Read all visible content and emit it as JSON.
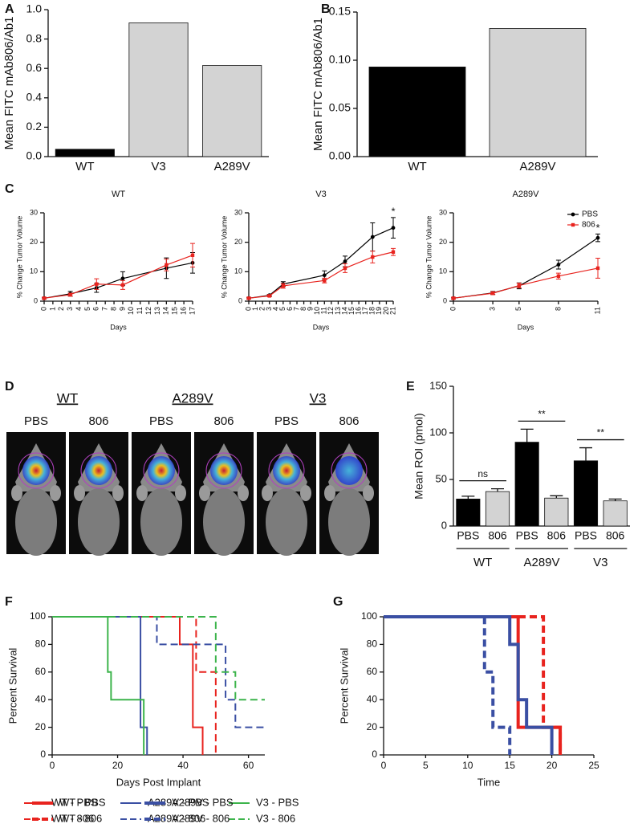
{
  "chart_data": [
    {
      "type": "bar",
      "label": "A",
      "ylabel": "Mean FITC mAb806/Ab1",
      "categories": [
        "WT",
        "V3",
        "A289V"
      ],
      "values": [
        0.05,
        0.91,
        0.62
      ],
      "colors": [
        "#000000",
        "#d3d3d3",
        "#d3d3d3"
      ],
      "ylim": [
        0,
        1
      ],
      "yticks": [
        {
          "value": 0,
          "label": "0.0"
        },
        0.2,
        0.4,
        0.6,
        0.8,
        {
          "value": 1,
          "label": "1.0"
        }
      ]
    },
    {
      "type": "bar",
      "label": "B",
      "ylabel": "Mean FITC mAb806/Ab1",
      "categories": [
        "WT",
        "A289V"
      ],
      "values": [
        0.093,
        0.133
      ],
      "colors": [
        "#000000",
        "#d3d3d3"
      ],
      "ylim": [
        0,
        0.15
      ],
      "yticks": [
        {
          "value": 0,
          "label": "0.00"
        },
        {
          "value": 0.05,
          "label": "0.05"
        },
        {
          "value": 0.1,
          "label": "0.10"
        },
        {
          "value": 0.15,
          "label": "0.15"
        }
      ]
    },
    {
      "type": "line",
      "label": "C",
      "title": "WT",
      "ylabel": "% Change Tumor Volume",
      "xlabel": "Days",
      "x": [
        0,
        3,
        6,
        9,
        14,
        17
      ],
      "xlim": [
        0,
        17
      ],
      "xticks": [
        0,
        1,
        2,
        3,
        4,
        5,
        6,
        7,
        8,
        9,
        10,
        11,
        12,
        13,
        14,
        15,
        16,
        17
      ],
      "ylim": [
        0,
        30
      ],
      "yticks": [
        0,
        10,
        20,
        30
      ],
      "series": [
        {
          "color": "#000000",
          "values": [
            1,
            2.5,
            4.5,
            7.7,
            11.2,
            13
          ],
          "errors": [
            0.3,
            0.8,
            1.5,
            2.3,
            3.5,
            3.5
          ]
        },
        {
          "color": "#e8231e",
          "values": [
            1,
            2.2,
            5.8,
            5.5,
            12.3,
            15.6
          ],
          "errors": [
            0.3,
            0.5,
            1.8,
            1.5,
            2,
            4
          ]
        }
      ]
    },
    {
      "type": "line",
      "title": "V3",
      "ylabel": "% Change Tumor Volume",
      "xlabel": "Days",
      "x": [
        0,
        3,
        5,
        11,
        14,
        18,
        21
      ],
      "xlim": [
        0,
        21
      ],
      "xticks": [
        0,
        1,
        2,
        3,
        4,
        5,
        6,
        7,
        8,
        9,
        10,
        11,
        12,
        13,
        14,
        15,
        16,
        17,
        18,
        19,
        20,
        21
      ],
      "ylim": [
        0,
        30
      ],
      "yticks": [
        0,
        10,
        20,
        30
      ],
      "annotation": "*",
      "series": [
        {
          "color": "#000000",
          "values": [
            1,
            2,
            5.8,
            8.8,
            13.5,
            21.8,
            24.9
          ],
          "errors": [
            0.3,
            0.3,
            0.8,
            1.5,
            1.8,
            4.8,
            3.5
          ]
        },
        {
          "color": "#e8231e",
          "values": [
            1,
            1.8,
            5.2,
            7,
            11.2,
            15,
            16.7
          ],
          "errors": [
            0.3,
            0.3,
            0.8,
            0.8,
            1.5,
            2,
            1.2
          ]
        }
      ]
    },
    {
      "type": "line",
      "title": "A289V",
      "ylabel": "% Change Tumor Volume",
      "xlabel": "Days",
      "x": [
        0,
        3,
        5,
        8,
        11
      ],
      "xlim": [
        0,
        11
      ],
      "xticks": [
        0,
        3,
        5,
        8,
        11
      ],
      "ylim": [
        0,
        30
      ],
      "yticks": [
        0,
        10,
        20,
        30
      ],
      "annotation": "*",
      "series": [
        {
          "name": "PBS",
          "color": "#000000",
          "values": [
            1,
            2.8,
            5.2,
            12.4,
            21.5
          ],
          "errors": [
            0.3,
            0.5,
            1,
            1.5,
            1.3
          ]
        },
        {
          "name": "806",
          "color": "#e8231e",
          "values": [
            1,
            2.7,
            5.3,
            8.5,
            11.2
          ],
          "errors": [
            0.3,
            0.5,
            0.8,
            1,
            3.4
          ]
        }
      ]
    },
    {
      "type": "bar",
      "label": "E",
      "ylabel": "Mean ROI (pmol)",
      "categories": [
        "PBS",
        "806",
        "PBS",
        "806",
        "PBS",
        "806"
      ],
      "values": [
        29,
        37,
        90,
        30,
        70,
        27
      ],
      "errors": [
        3,
        3,
        14,
        2.5,
        14,
        2
      ],
      "colors": [
        "#000000",
        "#d3d3d3",
        "#000000",
        "#d3d3d3",
        "#000000",
        "#d3d3d3"
      ],
      "group_labels": [
        "WT",
        "A289V",
        "V3"
      ],
      "annotations": [
        "ns",
        "**",
        "**"
      ],
      "ylim": [
        0,
        150
      ],
      "yticks": [
        0,
        50,
        100,
        150
      ]
    },
    {
      "type": "survival",
      "label": "F",
      "ylabel": "Percent Survival",
      "xlabel": "Days Post Implant",
      "xlim": [
        0,
        65
      ],
      "xticks": [
        0,
        20,
        40,
        60
      ],
      "ylim": [
        0,
        100
      ],
      "yticks": [
        0,
        20,
        40,
        60,
        80,
        100
      ],
      "series": [
        {
          "name": "WT - PBS",
          "color": "#e8231e",
          "dashed": false,
          "x": [
            0,
            39,
            43,
            46
          ],
          "values": [
            100,
            80,
            20,
            0
          ]
        },
        {
          "name": "WT - 806",
          "color": "#e8231e",
          "dashed": true,
          "x": [
            0,
            44,
            50
          ],
          "values": [
            100,
            60,
            0
          ]
        },
        {
          "name": "A289V - PBS",
          "color": "#3a4fa3",
          "dashed": false,
          "x": [
            0,
            27,
            29
          ],
          "values": [
            100,
            20,
            0
          ]
        },
        {
          "name": "A289V - 806",
          "color": "#3a4fa3",
          "dashed": true,
          "x": [
            0,
            32,
            53,
            56,
            65
          ],
          "values": [
            100,
            80,
            40,
            20,
            20
          ]
        },
        {
          "name": "V3 - PBS",
          "color": "#3cb44b",
          "dashed": false,
          "x": [
            0,
            17,
            18,
            28
          ],
          "values": [
            100,
            60,
            40,
            0
          ]
        },
        {
          "name": "V3 - 806",
          "color": "#3cb44b",
          "dashed": true,
          "x": [
            0,
            50,
            56,
            65
          ],
          "values": [
            100,
            60,
            40,
            40
          ]
        }
      ]
    },
    {
      "type": "survival",
      "label": "G",
      "ylabel": "Percent Survival",
      "xlabel": "Time",
      "xlim": [
        0,
        25
      ],
      "xticks": [
        0,
        5,
        10,
        15,
        20,
        25
      ],
      "ylim": [
        0,
        100
      ],
      "yticks": [
        0,
        20,
        40,
        60,
        80,
        100
      ],
      "series": [
        {
          "name": "WT - PBS",
          "color": "#e8231e",
          "dashed": false,
          "x": [
            0,
            16,
            21
          ],
          "values": [
            100,
            20,
            0
          ]
        },
        {
          "name": "WT - 806",
          "color": "#e8231e",
          "dashed": true,
          "x": [
            0,
            19,
            21
          ],
          "values": [
            100,
            20,
            0
          ]
        },
        {
          "name": "A289V - PBS",
          "color": "#3a4fa3",
          "dashed": false,
          "x": [
            0,
            15,
            16,
            17,
            20
          ],
          "values": [
            100,
            80,
            40,
            20,
            0
          ]
        },
        {
          "name": "A289V - 806",
          "color": "#3a4fa3",
          "dashed": true,
          "x": [
            0,
            12,
            13,
            15
          ],
          "values": [
            100,
            60,
            20,
            0
          ]
        }
      ]
    }
  ],
  "panel_d": {
    "label": "D",
    "groups": [
      "WT",
      "A289V",
      "V3"
    ],
    "treatments": [
      "PBS",
      "806",
      "PBS",
      "806",
      "PBS",
      "806"
    ]
  }
}
